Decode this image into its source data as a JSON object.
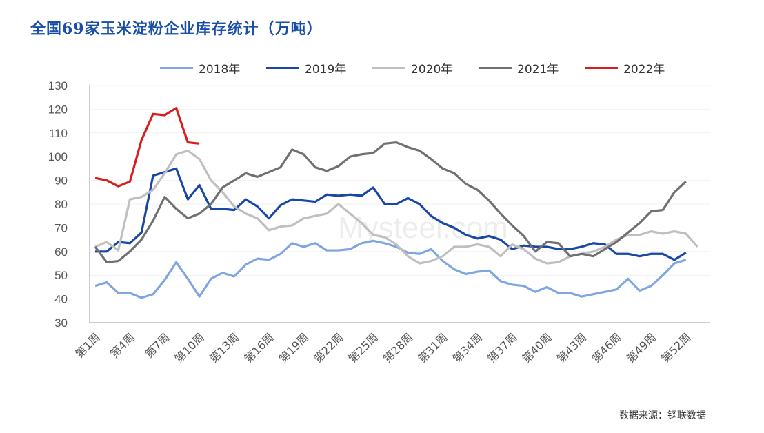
{
  "title": "全国69家玉米淀粉企业库存统计（万吨）",
  "source": "数据来源：钢联数据",
  "chart_data": {
    "type": "line",
    "title": "全国69家玉米淀粉企业库存统计（万吨）",
    "xlabel": "",
    "ylabel": "",
    "ylim": [
      30,
      130
    ],
    "yticks": [
      30,
      40,
      50,
      60,
      70,
      80,
      90,
      100,
      110,
      120,
      130
    ],
    "xtick_labels": [
      "第1周",
      "第4周",
      "第7周",
      "第10周",
      "第13周",
      "第16周",
      "第19周",
      "第22周",
      "第25周",
      "第28周",
      "第31周",
      "第34周",
      "第37周",
      "第40周",
      "第43周",
      "第46周",
      "第49周",
      "第52周"
    ],
    "x_unit": "week",
    "legend_position": "top",
    "grid": true,
    "series": [
      {
        "name": "2018年",
        "color": "#7fa6e0",
        "values": [
          45.5,
          47,
          42.5,
          42.5,
          40.5,
          42,
          48,
          55.5,
          48.5,
          41,
          48.5,
          51,
          49.5,
          54.5,
          57,
          56.5,
          59,
          63.5,
          62,
          63.5,
          60.5,
          60.5,
          61,
          63.5,
          64.5,
          63.5,
          62,
          59.5,
          59,
          61,
          56,
          52.5,
          50.5,
          51.5,
          52,
          47.5,
          46,
          45.5,
          43,
          45,
          42.5,
          42.5,
          41,
          42,
          43,
          44,
          48.5,
          43.5,
          45.5,
          50,
          55,
          56.5
        ]
      },
      {
        "name": "2019年",
        "color": "#1847a8",
        "values": [
          60,
          60,
          64,
          63.5,
          68,
          92,
          93.5,
          95,
          82,
          88,
          78,
          78,
          77.5,
          82,
          79,
          74,
          79.5,
          82,
          81.5,
          81,
          84,
          83.5,
          84,
          83.5,
          87,
          80,
          80,
          82.5,
          80,
          75,
          72,
          70,
          67,
          65.5,
          66.5,
          65,
          61,
          62.5,
          62,
          62,
          61,
          61,
          62,
          63.5,
          63,
          59,
          59,
          58,
          59,
          59,
          56.5,
          59.5
        ]
      },
      {
        "name": "2020年",
        "color": "#bfbfbf",
        "values": [
          62,
          64,
          60.5,
          82,
          83,
          86,
          93,
          101,
          102.5,
          99,
          90,
          85,
          79,
          76,
          74,
          69,
          70.5,
          71,
          74,
          75,
          76,
          80,
          76,
          72,
          67,
          66,
          63,
          58,
          55,
          56,
          58,
          62,
          62,
          63,
          62,
          58,
          63,
          61,
          57,
          55,
          55.5,
          58,
          59,
          60,
          62,
          65,
          67,
          67,
          68.5,
          67.5,
          68.5,
          67.5,
          62
        ]
      },
      {
        "name": "2021年",
        "color": "#707070",
        "values": [
          62,
          55.5,
          56,
          60,
          65,
          73,
          83,
          78,
          74,
          76,
          80,
          87,
          90,
          93,
          91.5,
          93.5,
          95.5,
          103,
          101,
          95.5,
          94,
          96,
          100,
          101,
          101.5,
          105.5,
          106,
          104,
          102.5,
          99,
          95,
          93,
          88.5,
          86,
          81.5,
          76,
          71,
          66.5,
          60,
          64,
          63.5,
          58,
          59,
          58,
          61,
          64,
          68,
          72,
          77,
          77.5,
          85,
          89.5
        ]
      },
      {
        "name": "2022年",
        "color": "#d91c1c",
        "values": [
          91,
          90,
          87.5,
          89.5,
          107,
          118,
          117.5,
          120.5,
          106,
          105.5
        ]
      }
    ]
  }
}
